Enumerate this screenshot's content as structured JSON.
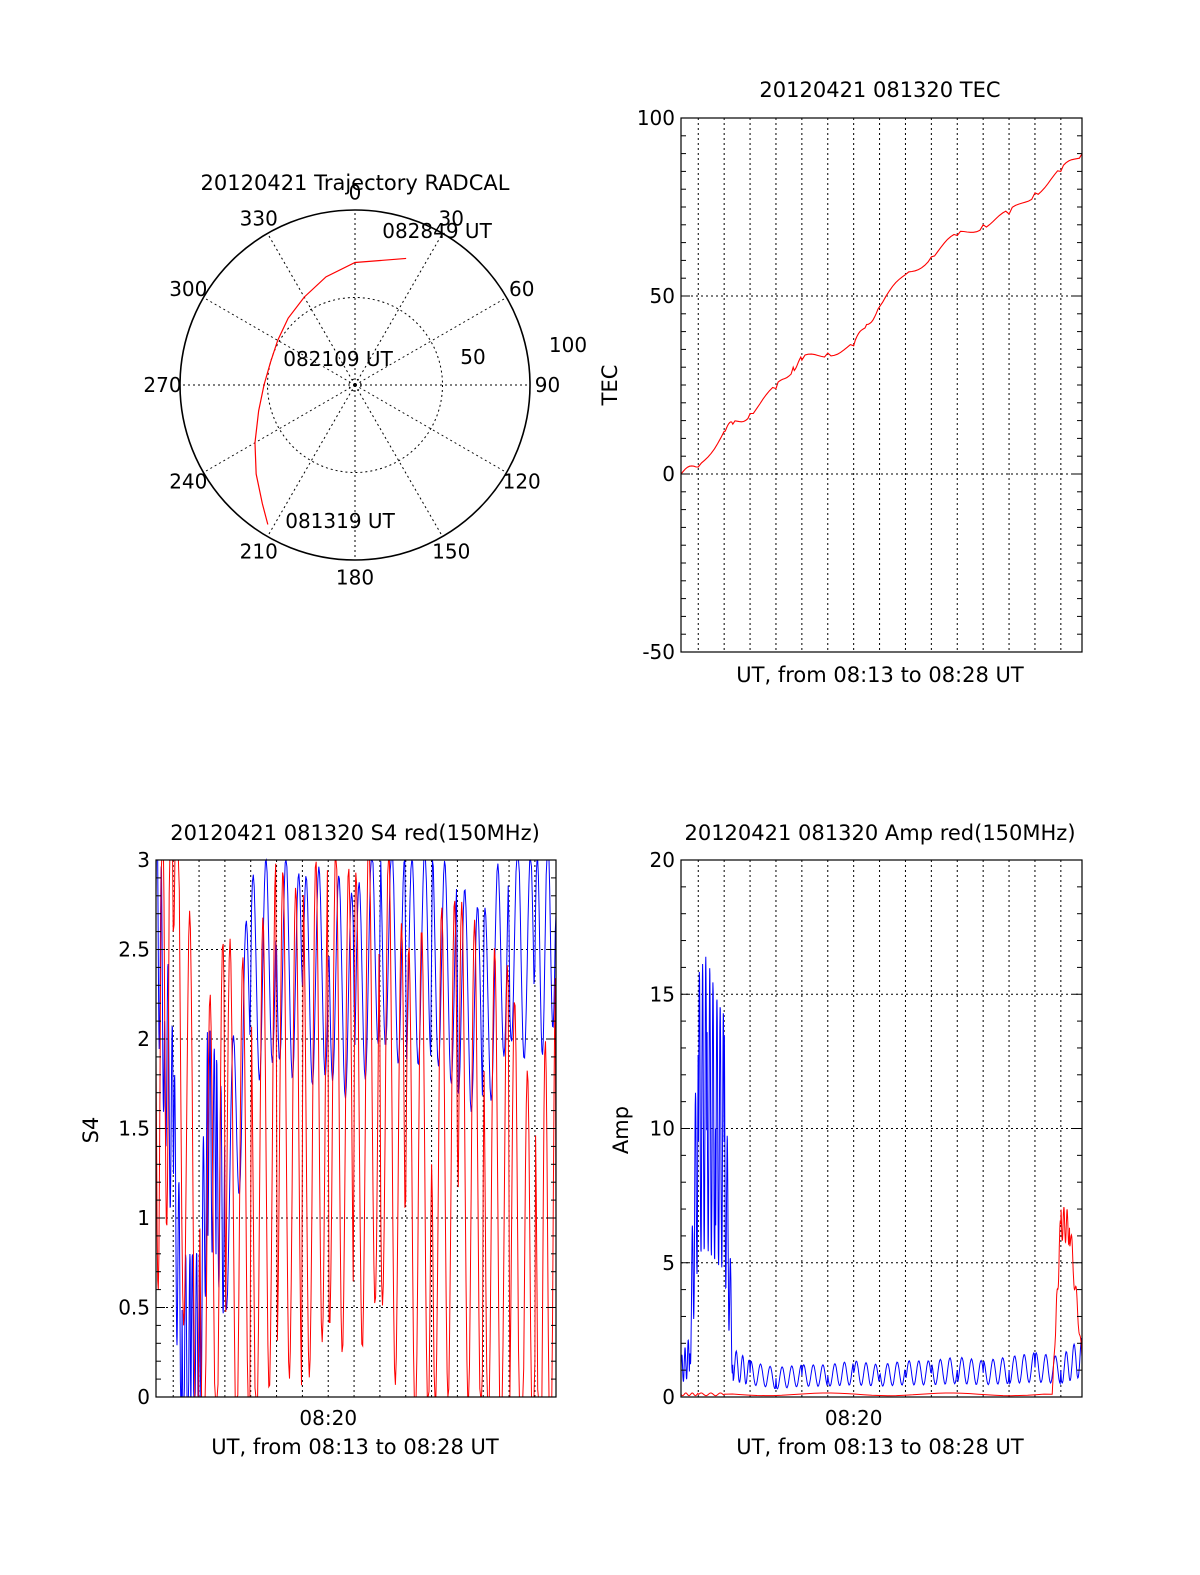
{
  "chart_data": [
    {
      "type": "polar",
      "title": "20120421 Trajectory RADCAL",
      "angle_labels": [
        "0",
        "30",
        "60",
        "90",
        "120",
        "150",
        "180",
        "210",
        "240",
        "270",
        "300",
        "330"
      ],
      "radial_labels": [
        "50",
        "100"
      ],
      "annotations": [
        {
          "text": "082849 UT",
          "azimuth": 22,
          "zenith": 78
        },
        {
          "text": "082109 UT",
          "azimuth": 270,
          "zenith": 52
        },
        {
          "text": "081319 UT",
          "azimuth": 212,
          "zenith": 94
        }
      ],
      "series": [
        {
          "color": "#ff0000",
          "azimuth": [
            212,
            218,
            228,
            240,
            255,
            270,
            285,
            300,
            315,
            330,
            345,
            360,
            382
          ],
          "zenith": [
            94,
            86,
            76,
            66,
            57,
            52,
            50,
            51,
            54,
            58,
            64,
            70,
            78
          ]
        }
      ]
    },
    {
      "type": "line",
      "title": "20120421 081320 TEC",
      "xlabel": "UT, from 08:13 to 08:28 UT",
      "ylabel": "TEC",
      "ylim": [
        -50,
        100
      ],
      "yticks": [
        "100",
        "50",
        "0",
        "-50"
      ],
      "xlim": [
        "08:13:20",
        "08:28:49"
      ],
      "series": [
        {
          "color": "#ff0000",
          "x": [
            "08:13:20",
            "08:14:00",
            "08:15:00",
            "08:15:20",
            "08:16:00",
            "08:17:00",
            "08:17:40",
            "08:18:00",
            "08:19:00",
            "08:20:00",
            "08:20:30",
            "08:21:00",
            "08:22:00",
            "08:23:00",
            "08:24:00",
            "08:25:00",
            "08:26:00",
            "08:27:00",
            "08:28:00",
            "08:28:49"
          ],
          "y": [
            0,
            2,
            12,
            14,
            17,
            24,
            30,
            32,
            34,
            36,
            42,
            47,
            56,
            61,
            67,
            70,
            73,
            79,
            85,
            90
          ]
        }
      ]
    },
    {
      "type": "line",
      "title": "20120421 081320 S4 red(150MHz)",
      "xlabel": "UT, from 08:13 to 08:28 UT",
      "ylabel": "S4",
      "ylim": [
        0,
        3
      ],
      "yticks": [
        "3",
        "2.5",
        "2",
        "1.5",
        "1",
        "0.5",
        "0"
      ],
      "xticks": [
        "08:20"
      ],
      "xlim": [
        "08:13:20",
        "08:28:49"
      ],
      "series": [
        {
          "color": "#0000ff",
          "x": [
            "08:13:20",
            "08:13:40",
            "08:14:00",
            "08:14:20",
            "08:14:40",
            "08:15:00",
            "08:15:20",
            "08:15:40",
            "08:16:00",
            "08:17:00",
            "08:18:00",
            "08:19:00",
            "08:20:00",
            "08:21:00",
            "08:22:00",
            "08:23:00",
            "08:24:00",
            "08:25:00",
            "08:26:00",
            "08:27:00",
            "08:28:00",
            "08:28:49"
          ],
          "y": [
            2.8,
            2.1,
            1.4,
            0.2,
            0.2,
            0.22,
            1.5,
            1.3,
            1.0,
            2.3,
            2.5,
            2.3,
            2.4,
            2.2,
            2.6,
            2.4,
            2.5,
            2.3,
            2.1,
            2.6,
            2.4,
            2.7
          ]
        },
        {
          "color": "#ff0000",
          "x": [
            "08:13:20",
            "08:14:00",
            "08:15:00",
            "08:16:00",
            "08:17:00",
            "08:18:00",
            "08:19:00",
            "08:20:00",
            "08:21:00",
            "08:22:00",
            "08:23:00",
            "08:24:00",
            "08:25:00",
            "08:26:00",
            "08:27:00",
            "08:28:00",
            "08:28:49"
          ],
          "y": [
            1.9,
            2.6,
            0.6,
            1.2,
            1.0,
            1.6,
            1.4,
            1.8,
            1.5,
            2.0,
            1.1,
            1.3,
            1.4,
            1.2,
            1.0,
            0.2,
            1.0
          ]
        }
      ]
    },
    {
      "type": "line",
      "title": "20120421 081320 Amp red(150MHz)",
      "xlabel": "UT, from 08:13 to 08:28 UT",
      "ylabel": "Amp",
      "ylim": [
        0,
        20
      ],
      "yticks": [
        "20",
        "15",
        "10",
        "5",
        "0"
      ],
      "xticks": [
        "08:20"
      ],
      "xlim": [
        "08:13:20",
        "08:28:49"
      ],
      "series": [
        {
          "color": "#0000ff",
          "x": [
            "08:13:20",
            "08:13:40",
            "08:14:00",
            "08:14:20",
            "08:14:40",
            "08:15:00",
            "08:15:20",
            "08:16:00",
            "08:17:00",
            "08:18:00",
            "08:19:00",
            "08:20:00",
            "08:21:00",
            "08:22:00",
            "08:23:00",
            "08:24:00",
            "08:25:00",
            "08:26:00",
            "08:27:00",
            "08:28:00",
            "08:28:49"
          ],
          "y": [
            1.0,
            1.5,
            10.5,
            11.0,
            10.0,
            9.5,
            1.2,
            0.9,
            0.7,
            0.8,
            0.8,
            0.9,
            0.8,
            0.9,
            0.9,
            1.0,
            0.9,
            1.0,
            1.1,
            1.0,
            1.5
          ]
        },
        {
          "color": "#ff0000",
          "x": [
            "08:13:20",
            "08:14:00",
            "08:15:00",
            "08:27:40",
            "08:28:00",
            "08:28:20",
            "08:28:49"
          ],
          "y": [
            0.1,
            0.1,
            0.1,
            0.1,
            6.5,
            6.3,
            1.5
          ]
        }
      ]
    }
  ]
}
